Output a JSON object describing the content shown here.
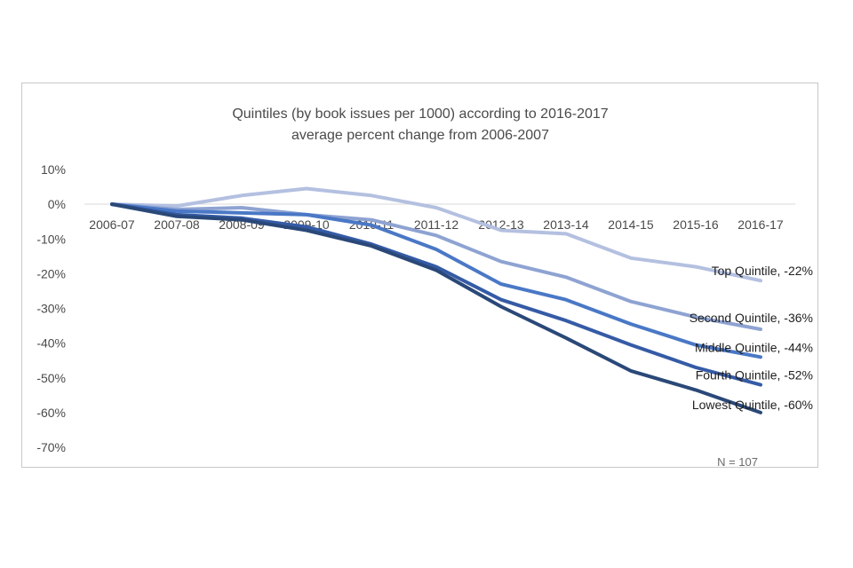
{
  "chart_data": {
    "type": "line",
    "title": "Quintiles (by book issues per 1000) according to 2016-2017",
    "subtitle": "average percent change from 2006-2007",
    "xlabel": "",
    "ylabel": "",
    "categories": [
      "2006-07",
      "2007-08",
      "2008-09",
      "2009-10",
      "2010-11",
      "2011-12",
      "2012-13",
      "2013-14",
      "2014-15",
      "2015-16",
      "2016-17"
    ],
    "yticks": [
      "10%",
      "0%",
      "-10%",
      "-20%",
      "-30%",
      "-40%",
      "-50%",
      "-60%",
      "-70%"
    ],
    "ylim": [
      -70,
      10
    ],
    "grid": false,
    "note": "N = 107",
    "series": [
      {
        "name": "Top Quintile",
        "label": "Top Quintile, -22%",
        "color": "#b4c0e0",
        "values": [
          0,
          -0.5,
          2.5,
          4.5,
          2.5,
          -1,
          -7.5,
          -8.5,
          -15.5,
          -18,
          -22
        ]
      },
      {
        "name": "Second Quintile",
        "label": "Second Quintile, -36%",
        "color": "#8ea3d2",
        "values": [
          0,
          -1.5,
          -1,
          -3,
          -4.5,
          -9,
          -16.5,
          -21,
          -28,
          -32.5,
          -36
        ]
      },
      {
        "name": "Middle Quintile",
        "label": "Middle Quintile, -44%",
        "color": "#4a78c6",
        "values": [
          0,
          -2,
          -2.5,
          -3,
          -6,
          -13,
          -23,
          -27.5,
          -34.5,
          -40.5,
          -44
        ]
      },
      {
        "name": "Fourth Quintile",
        "label": "Fourth Quintile, -52%",
        "color": "#355ba6",
        "values": [
          0,
          -3,
          -4,
          -6.5,
          -11.5,
          -18,
          -27.5,
          -33.5,
          -40.5,
          -47,
          -52
        ]
      },
      {
        "name": "Lowest Quintile",
        "label": "Lowest Quintile, -60%",
        "color": "#2a4878",
        "values": [
          0,
          -3.5,
          -4.5,
          -7.5,
          -12,
          -19,
          -29.5,
          -38.5,
          -48,
          -53.5,
          -60
        ]
      }
    ]
  }
}
